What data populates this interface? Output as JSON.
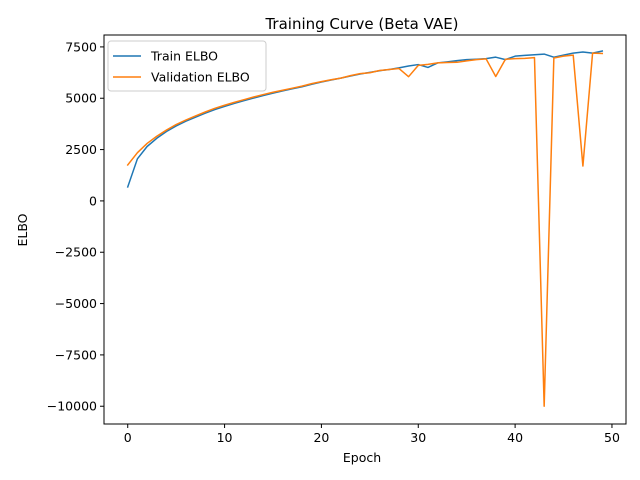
{
  "chart_data": {
    "type": "line",
    "title": "Training Curve (Beta VAE)",
    "xlabel": "Epoch",
    "ylabel": "ELBO",
    "xlim": [
      -2.45,
      51.45
    ],
    "ylim": [
      -10865,
      8080
    ],
    "x_ticks": [
      0,
      10,
      20,
      30,
      40,
      50
    ],
    "y_ticks": [
      -10000,
      -7500,
      -5000,
      -2500,
      0,
      2500,
      5000,
      7500
    ],
    "x_tick_labels": [
      "0",
      "10",
      "20",
      "30",
      "40",
      "50"
    ],
    "y_tick_labels": [
      "−10000",
      "−7500",
      "−5000",
      "−2500",
      "0",
      "2500",
      "5000",
      "7500"
    ],
    "grid": false,
    "legend_position": "upper-left",
    "x": [
      0,
      1,
      2,
      3,
      4,
      5,
      6,
      7,
      8,
      9,
      10,
      11,
      12,
      13,
      14,
      15,
      16,
      17,
      18,
      19,
      20,
      21,
      22,
      23,
      24,
      25,
      26,
      27,
      28,
      29,
      30,
      31,
      32,
      33,
      34,
      35,
      36,
      37,
      38,
      39,
      40,
      41,
      42,
      43,
      44,
      45,
      46,
      47,
      48,
      49
    ],
    "series": [
      {
        "name": "Train ELBO",
        "color": "#1f77b4",
        "values": [
          680,
          2050,
          2650,
          3050,
          3380,
          3650,
          3880,
          4080,
          4270,
          4450,
          4600,
          4750,
          4880,
          5010,
          5130,
          5250,
          5360,
          5460,
          5560,
          5680,
          5790,
          5890,
          5980,
          6080,
          6180,
          6260,
          6340,
          6400,
          6480,
          6570,
          6640,
          6500,
          6720,
          6770,
          6830,
          6880,
          6900,
          6930,
          7000,
          6880,
          7050,
          7090,
          7120,
          7150,
          7000,
          7100,
          7200,
          7250,
          7200,
          7300
        ]
      },
      {
        "name": "Validation ELBO",
        "color": "#ff7f0e",
        "values": [
          1750,
          2350,
          2800,
          3150,
          3450,
          3720,
          3940,
          4140,
          4330,
          4510,
          4660,
          4800,
          4930,
          5060,
          5180,
          5290,
          5390,
          5490,
          5590,
          5710,
          5810,
          5900,
          5980,
          6100,
          6200,
          6240,
          6350,
          6400,
          6450,
          6050,
          6600,
          6650,
          6720,
          6740,
          6750,
          6820,
          6880,
          6920,
          6060,
          6900,
          6930,
          6940,
          6980,
          -10000,
          6960,
          7050,
          7100,
          1700,
          7200,
          7180
        ]
      }
    ]
  }
}
